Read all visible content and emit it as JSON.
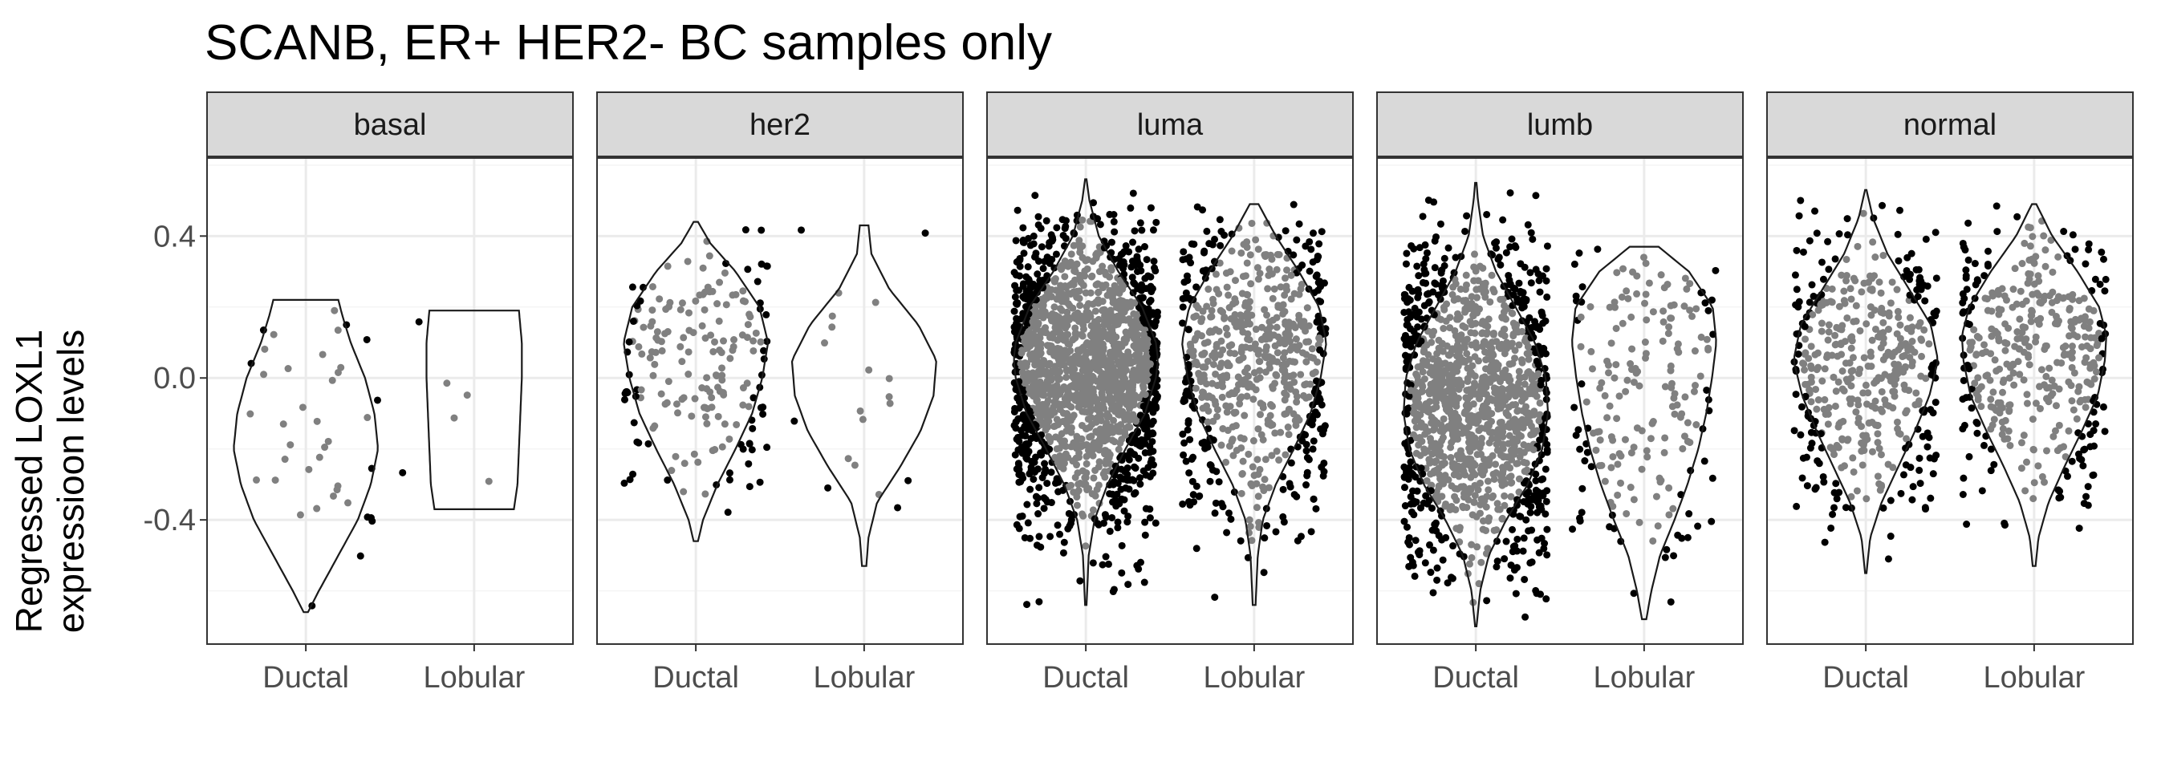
{
  "chart_data": {
    "type": "violin",
    "title": "SCANB, ER+ HER2- BC samples only",
    "ylabel_lines": [
      "Regressed LOXL1",
      "expressioon levels"
    ],
    "xlabel": "",
    "categories": [
      "Ductal",
      "Lobular"
    ],
    "ylim": [
      -0.75,
      0.62
    ],
    "yticks": [
      0.4,
      0.0,
      -0.4
    ],
    "ytick_labels": [
      "0.4",
      "0.0",
      "-0.4"
    ],
    "grid": true,
    "colors": {
      "outlier_points": "#000000",
      "inner_points": "#808080",
      "violin_outline": "#1a1a1a",
      "strip_fill": "#d9d9d9",
      "grid": "#ebebeb"
    },
    "panels": [
      {
        "name": "basal",
        "groups": [
          {
            "category": "Ductal",
            "n": 40,
            "ymin": -0.66,
            "ymax": 0.22,
            "density": [
              [
                -0.66,
                0.03
              ],
              [
                -0.6,
                0.18
              ],
              [
                -0.5,
                0.45
              ],
              [
                -0.4,
                0.72
              ],
              [
                -0.3,
                0.9
              ],
              [
                -0.2,
                1.0
              ],
              [
                -0.1,
                0.95
              ],
              [
                0.0,
                0.82
              ],
              [
                0.1,
                0.62
              ],
              [
                0.18,
                0.5
              ],
              [
                0.22,
                0.45
              ]
            ]
          },
          {
            "category": "Lobular",
            "n": 6,
            "ymin": -0.37,
            "ymax": 0.19,
            "density": [
              [
                -0.37,
                0.55
              ],
              [
                -0.3,
                0.6
              ],
              [
                -0.2,
                0.62
              ],
              [
                -0.1,
                0.64
              ],
              [
                0.0,
                0.66
              ],
              [
                0.1,
                0.66
              ],
              [
                0.19,
                0.62
              ]
            ]
          }
        ]
      },
      {
        "name": "her2",
        "groups": [
          {
            "category": "Ductal",
            "n": 190,
            "ymin": -0.46,
            "ymax": 0.44,
            "density": [
              [
                -0.46,
                0.03
              ],
              [
                -0.4,
                0.1
              ],
              [
                -0.3,
                0.3
              ],
              [
                -0.2,
                0.55
              ],
              [
                -0.1,
                0.78
              ],
              [
                0.0,
                0.92
              ],
              [
                0.1,
                1.0
              ],
              [
                0.2,
                0.88
              ],
              [
                0.3,
                0.55
              ],
              [
                0.38,
                0.2
              ],
              [
                0.44,
                0.03
              ]
            ]
          },
          {
            "category": "Lobular",
            "n": 20,
            "ymin": -0.53,
            "ymax": 0.43,
            "density": [
              [
                -0.53,
                0.03
              ],
              [
                -0.45,
                0.06
              ],
              [
                -0.35,
                0.18
              ],
              [
                -0.25,
                0.5
              ],
              [
                -0.15,
                0.78
              ],
              [
                -0.05,
                0.96
              ],
              [
                0.05,
                1.0
              ],
              [
                0.15,
                0.75
              ],
              [
                0.25,
                0.35
              ],
              [
                0.35,
                0.1
              ],
              [
                0.43,
                0.06
              ]
            ]
          }
        ]
      },
      {
        "name": "luma",
        "groups": [
          {
            "category": "Ductal",
            "n": 1800,
            "ymin": -0.64,
            "ymax": 0.56,
            "density": [
              [
                -0.64,
                0.01
              ],
              [
                -0.5,
                0.04
              ],
              [
                -0.4,
                0.12
              ],
              [
                -0.3,
                0.3
              ],
              [
                -0.2,
                0.55
              ],
              [
                -0.1,
                0.82
              ],
              [
                0.0,
                0.97
              ],
              [
                0.05,
                1.0
              ],
              [
                0.1,
                0.97
              ],
              [
                0.2,
                0.78
              ],
              [
                0.3,
                0.45
              ],
              [
                0.4,
                0.18
              ],
              [
                0.5,
                0.05
              ],
              [
                0.56,
                0.01
              ]
            ]
          },
          {
            "category": "Lobular",
            "n": 650,
            "ymin": -0.64,
            "ymax": 0.49,
            "density": [
              [
                -0.64,
                0.02
              ],
              [
                -0.5,
                0.05
              ],
              [
                -0.4,
                0.12
              ],
              [
                -0.3,
                0.3
              ],
              [
                -0.2,
                0.55
              ],
              [
                -0.1,
                0.78
              ],
              [
                0.0,
                0.92
              ],
              [
                0.1,
                1.0
              ],
              [
                0.2,
                0.9
              ],
              [
                0.3,
                0.62
              ],
              [
                0.4,
                0.3
              ],
              [
                0.49,
                0.06
              ]
            ]
          }
        ]
      },
      {
        "name": "lumb",
        "groups": [
          {
            "category": "Ductal",
            "n": 1300,
            "ymin": -0.7,
            "ymax": 0.55,
            "density": [
              [
                -0.7,
                0.01
              ],
              [
                -0.6,
                0.06
              ],
              [
                -0.5,
                0.18
              ],
              [
                -0.4,
                0.42
              ],
              [
                -0.3,
                0.72
              ],
              [
                -0.2,
                0.92
              ],
              [
                -0.1,
                1.0
              ],
              [
                0.0,
                0.97
              ],
              [
                0.1,
                0.82
              ],
              [
                0.2,
                0.55
              ],
              [
                0.3,
                0.28
              ],
              [
                0.4,
                0.1
              ],
              [
                0.5,
                0.03
              ],
              [
                0.55,
                0.01
              ]
            ]
          },
          {
            "category": "Lobular",
            "n": 200,
            "ymin": -0.68,
            "ymax": 0.37,
            "density": [
              [
                -0.68,
                0.03
              ],
              [
                -0.6,
                0.1
              ],
              [
                -0.5,
                0.22
              ],
              [
                -0.4,
                0.42
              ],
              [
                -0.3,
                0.6
              ],
              [
                -0.2,
                0.75
              ],
              [
                -0.1,
                0.86
              ],
              [
                0.0,
                0.94
              ],
              [
                0.1,
                1.0
              ],
              [
                0.2,
                0.95
              ],
              [
                0.3,
                0.62
              ],
              [
                0.37,
                0.2
              ]
            ]
          }
        ]
      },
      {
        "name": "normal",
        "groups": [
          {
            "category": "Ductal",
            "n": 450,
            "ymin": -0.55,
            "ymax": 0.53,
            "density": [
              [
                -0.55,
                0.01
              ],
              [
                -0.45,
                0.06
              ],
              [
                -0.35,
                0.22
              ],
              [
                -0.25,
                0.45
              ],
              [
                -0.15,
                0.68
              ],
              [
                -0.05,
                0.88
              ],
              [
                0.05,
                1.0
              ],
              [
                0.15,
                0.9
              ],
              [
                0.25,
                0.6
              ],
              [
                0.35,
                0.3
              ],
              [
                0.45,
                0.1
              ],
              [
                0.53,
                0.01
              ]
            ]
          },
          {
            "category": "Lobular",
            "n": 400,
            "ymin": -0.53,
            "ymax": 0.49,
            "density": [
              [
                -0.53,
                0.02
              ],
              [
                -0.45,
                0.06
              ],
              [
                -0.35,
                0.2
              ],
              [
                -0.25,
                0.42
              ],
              [
                -0.15,
                0.66
              ],
              [
                -0.05,
                0.88
              ],
              [
                0.05,
                0.98
              ],
              [
                0.12,
                1.0
              ],
              [
                0.2,
                0.9
              ],
              [
                0.3,
                0.6
              ],
              [
                0.4,
                0.25
              ],
              [
                0.49,
                0.03
              ]
            ]
          }
        ]
      }
    ]
  }
}
